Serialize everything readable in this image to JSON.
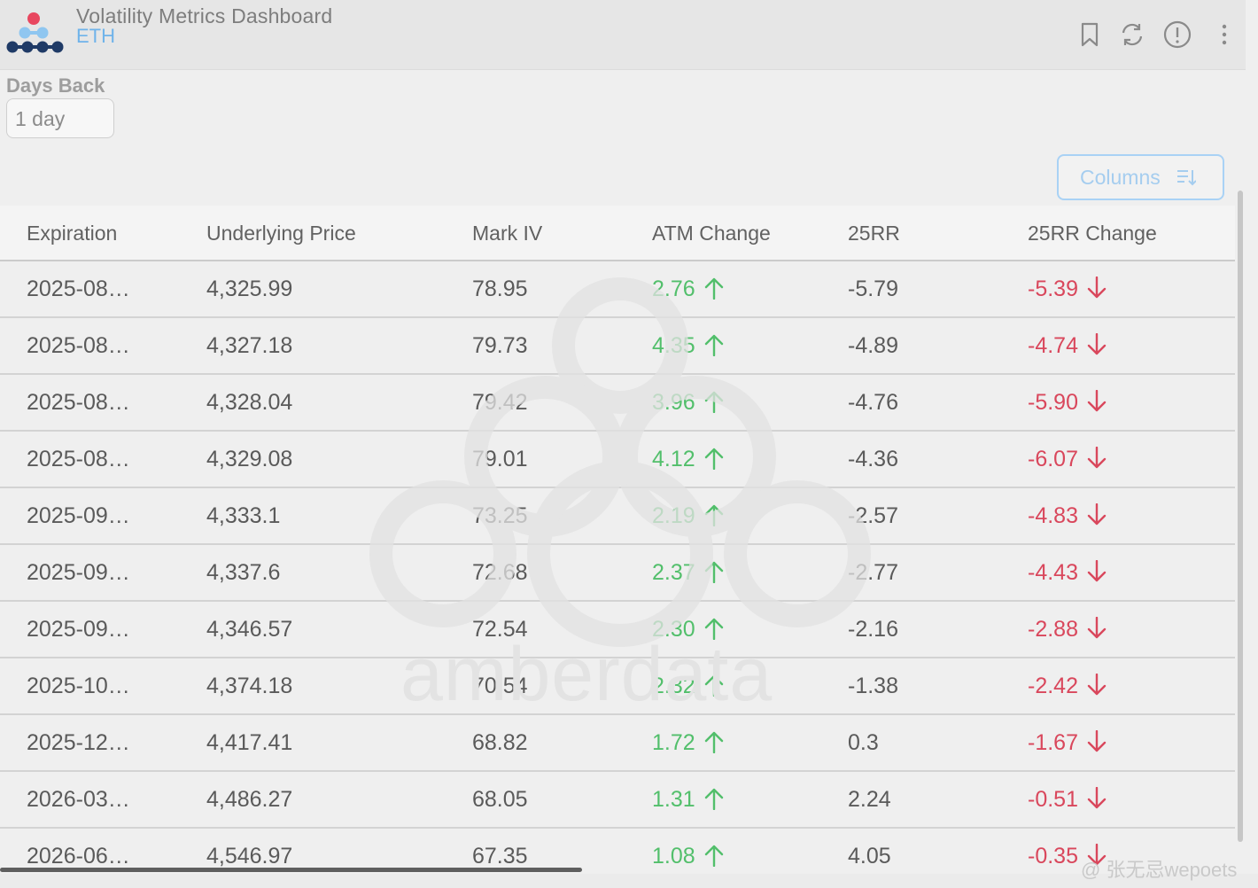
{
  "header": {
    "title": "Volatility Metrics Dashboard",
    "subtitle": "ETH",
    "icons": [
      "bookmark-icon",
      "refresh-icon",
      "info-icon",
      "more-vertical-icon"
    ]
  },
  "filters": {
    "days_back_label": "Days Back",
    "days_back_value": "1 day"
  },
  "toolbar": {
    "columns_label": "Columns",
    "columns_icon": "sort-lines-icon"
  },
  "table": {
    "headers": [
      "Expiration",
      "Underlying Price",
      "Mark IV",
      "ATM Change",
      "25RR",
      "25RR Change"
    ],
    "rows": [
      {
        "expiration": "2025-08…",
        "underlying": "4,325.99",
        "mark_iv": "78.95",
        "atm_change": "2.76",
        "rr25": "-5.79",
        "rr25_change": "-5.39"
      },
      {
        "expiration": "2025-08…",
        "underlying": "4,327.18",
        "mark_iv": "79.73",
        "atm_change": "4.35",
        "rr25": "-4.89",
        "rr25_change": "-4.74"
      },
      {
        "expiration": "2025-08…",
        "underlying": "4,328.04",
        "mark_iv": "79.42",
        "atm_change": "3.96",
        "rr25": "-4.76",
        "rr25_change": "-5.90"
      },
      {
        "expiration": "2025-08…",
        "underlying": "4,329.08",
        "mark_iv": "79.01",
        "atm_change": "4.12",
        "rr25": "-4.36",
        "rr25_change": "-6.07"
      },
      {
        "expiration": "2025-09…",
        "underlying": "4,333.1",
        "mark_iv": "73.25",
        "atm_change": "2.19",
        "rr25": "-2.57",
        "rr25_change": "-4.83"
      },
      {
        "expiration": "2025-09…",
        "underlying": "4,337.6",
        "mark_iv": "72.68",
        "atm_change": "2.37",
        "rr25": "-2.77",
        "rr25_change": "-4.43"
      },
      {
        "expiration": "2025-09…",
        "underlying": "4,346.57",
        "mark_iv": "72.54",
        "atm_change": "2.30",
        "rr25": "-2.16",
        "rr25_change": "-2.88"
      },
      {
        "expiration": "2025-10…",
        "underlying": "4,374.18",
        "mark_iv": "70.54",
        "atm_change": "2.32",
        "rr25": "-1.38",
        "rr25_change": "-2.42"
      },
      {
        "expiration": "2025-12…",
        "underlying": "4,417.41",
        "mark_iv": "68.82",
        "atm_change": "1.72",
        "rr25": "0.3",
        "rr25_change": "-1.67"
      },
      {
        "expiration": "2026-03…",
        "underlying": "4,486.27",
        "mark_iv": "68.05",
        "atm_change": "1.31",
        "rr25": "2.24",
        "rr25_change": "-0.51"
      },
      {
        "expiration": "2026-06…",
        "underlying": "4,546.97",
        "mark_iv": "67.35",
        "atm_change": "1.08",
        "rr25": "4.05",
        "rr25_change": "-0.35"
      }
    ]
  },
  "watermark": {
    "text": "amberdata"
  },
  "credit": "@ 张无忌wepoets",
  "colors": {
    "positive": "#52bf6b",
    "negative": "#d9475c",
    "accent": "#6fb3ea"
  }
}
